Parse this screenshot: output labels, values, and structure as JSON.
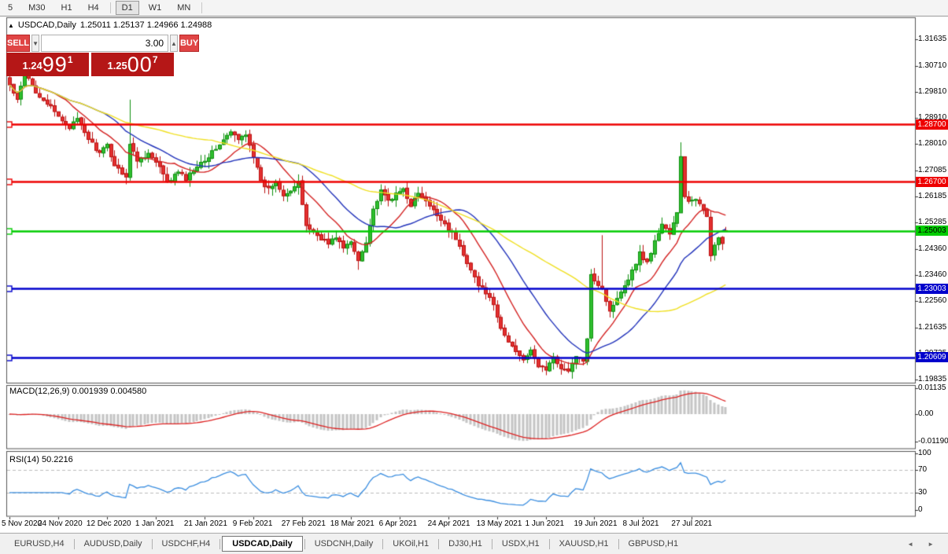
{
  "toolbar": {
    "timeframes": [
      "5",
      "M30",
      "H1",
      "H4",
      "D1",
      "W1",
      "MN"
    ],
    "active": "D1"
  },
  "title": {
    "symbol_text": "USDCAD,Daily",
    "ohlc_text": "1.25011 1.25137 1.24966 1.24988"
  },
  "trade_panel": {
    "sell_label": "SELL",
    "buy_label": "BUY",
    "volume": "3.00",
    "sell_price": {
      "small": "1.24",
      "big": "99",
      "sup": "1"
    },
    "buy_price": {
      "small": "1.25",
      "big": "00",
      "sup": "7"
    }
  },
  "chart_data": {
    "type": "candlestick",
    "symbol": "USDCAD",
    "period": "Daily",
    "num_candles": 192,
    "last_candle": {
      "open": 1.25011,
      "high": 1.25137,
      "low": 1.24966,
      "close": 1.24988
    },
    "close_keypoints": [
      [
        0,
        1.3005
      ],
      [
        2,
        1.295
      ],
      [
        4,
        1.3048
      ],
      [
        7,
        1.2983
      ],
      [
        10,
        1.2942
      ],
      [
        13,
        1.2895
      ],
      [
        16,
        1.286
      ],
      [
        18,
        1.2885
      ],
      [
        21,
        1.282
      ],
      [
        24,
        1.2768
      ],
      [
        26,
        1.2796
      ],
      [
        28,
        1.2728
      ],
      [
        31,
        1.269
      ],
      [
        32,
        1.28
      ],
      [
        34,
        1.2745
      ],
      [
        37,
        1.2768
      ],
      [
        40,
        1.272
      ],
      [
        42,
        1.2665
      ],
      [
        45,
        1.2705
      ],
      [
        47,
        1.268
      ],
      [
        50,
        1.2728
      ],
      [
        53,
        1.2758
      ],
      [
        56,
        1.28
      ],
      [
        59,
        1.2842
      ],
      [
        61,
        1.2815
      ],
      [
        63,
        1.2838
      ],
      [
        65,
        1.2762
      ],
      [
        67,
        1.2668
      ],
      [
        69,
        1.2645
      ],
      [
        71,
        1.2672
      ],
      [
        73,
        1.2628
      ],
      [
        75,
        1.264
      ],
      [
        77,
        1.2665
      ],
      [
        79,
        1.252
      ],
      [
        81,
        1.2495
      ],
      [
        83,
        1.2475
      ],
      [
        85,
        1.2455
      ],
      [
        87,
        1.248
      ],
      [
        89,
        1.244
      ],
      [
        91,
        1.246
      ],
      [
        93,
        1.2398
      ],
      [
        95,
        1.2465
      ],
      [
        97,
        1.2575
      ],
      [
        99,
        1.2635
      ],
      [
        101,
        1.2605
      ],
      [
        103,
        1.2625
      ],
      [
        105,
        1.2645
      ],
      [
        107,
        1.259
      ],
      [
        109,
        1.2628
      ],
      [
        111,
        1.26
      ],
      [
        113,
        1.2568
      ],
      [
        115,
        1.2542
      ],
      [
        117,
        1.2508
      ],
      [
        119,
        1.2472
      ],
      [
        121,
        1.2415
      ],
      [
        123,
        1.237
      ],
      [
        125,
        1.231
      ],
      [
        127,
        1.2288
      ],
      [
        129,
        1.2238
      ],
      [
        131,
        1.216
      ],
      [
        133,
        1.2115
      ],
      [
        135,
        1.2085
      ],
      [
        137,
        1.2058
      ],
      [
        139,
        1.208
      ],
      [
        141,
        1.2032
      ],
      [
        143,
        1.202
      ],
      [
        145,
        1.2058
      ],
      [
        147,
        1.2028
      ],
      [
        149,
        1.201
      ],
      [
        151,
        1.2068
      ],
      [
        153,
        1.2042
      ],
      [
        154,
        1.213
      ],
      [
        155,
        1.2355
      ],
      [
        156,
        1.233
      ],
      [
        158,
        1.23
      ],
      [
        160,
        1.2218
      ],
      [
        162,
        1.2272
      ],
      [
        164,
        1.2312
      ],
      [
        166,
        1.236
      ],
      [
        168,
        1.2422
      ],
      [
        170,
        1.239
      ],
      [
        172,
        1.2462
      ],
      [
        174,
        1.2525
      ],
      [
        176,
        1.249
      ],
      [
        178,
        1.256
      ],
      [
        179,
        1.2755
      ],
      [
        180,
        1.262
      ],
      [
        181,
        1.2605
      ],
      [
        183,
        1.2605
      ],
      [
        185,
        1.2572
      ],
      [
        186,
        1.2556
      ],
      [
        187,
        1.242
      ],
      [
        188,
        1.2445
      ],
      [
        189,
        1.2475
      ],
      [
        190,
        1.2455
      ],
      [
        191,
        1.24988
      ]
    ],
    "special_wicks": {
      "32": {
        "high": 1.2955
      },
      "93": {
        "low": 1.2365
      },
      "158": {
        "high": 1.2485
      },
      "179": {
        "high": 1.2807
      }
    },
    "hlines": [
      {
        "price": 1.287,
        "label": "1.28700",
        "color": "#ee0000",
        "text_color": "#ffffff"
      },
      {
        "price": 1.267,
        "label": "1.26700",
        "color": "#ee0000",
        "text_color": "#ffffff"
      },
      {
        "price": 1.25003,
        "label": "1.25003",
        "color": "#00cc00",
        "text_color": "#000000"
      },
      {
        "price": 1.23003,
        "label": "1.23003",
        "color": "#0000cc",
        "text_color": "#ffffff"
      },
      {
        "price": 1.20609,
        "label": "1.20609",
        "color": "#0000cc",
        "text_color": "#ffffff"
      }
    ],
    "price_ticks": [
      "1.31635",
      "1.30710",
      "1.29810",
      "1.28910",
      "1.28010",
      "1.27085",
      "1.26185",
      "1.25285",
      "1.24360",
      "1.23460",
      "1.22560",
      "1.21635",
      "1.20735",
      "1.19835"
    ],
    "moving_averages": [
      {
        "period": 13,
        "color": "#d42222"
      },
      {
        "period": 26,
        "color": "#2233bb"
      },
      {
        "period": 55,
        "color": "#f0e022"
      }
    ],
    "candle_colors": {
      "up_fill": "#2fbf2f",
      "up_edge": "#0e8f0e",
      "down_fill": "#e33030",
      "down_edge": "#bb1111"
    },
    "macd": {
      "label": "MACD(12,26,9) 0.001939 0.004580",
      "fast": 12,
      "slow": 26,
      "signal": 9,
      "ticks": [
        "0.01135",
        "0.00",
        "-0.01190"
      ],
      "bar_color": "#c4c4c4",
      "line_color": "#dd2222"
    },
    "rsi": {
      "label": "RSI(14) 50.2216",
      "period": 14,
      "ticks": [
        "100",
        "70",
        "30",
        "0"
      ],
      "levels": [
        70,
        30
      ],
      "line_color": "#3b8ee0"
    },
    "date_labels": [
      "5 Nov 2020",
      "24 Nov 2020",
      "12 Dec 2020",
      "1 Jan 2021",
      "21 Jan 2021",
      "9 Feb 2021",
      "27 Feb 2021",
      "18 Mar 2021",
      "6 Apr 2021",
      "24 Apr 2021",
      "13 May 2021",
      "1 Jun 2021",
      "19 Jun 2021",
      "8 Jul 2021",
      "27 Jul 2021"
    ],
    "label_every": 13
  },
  "tabs": {
    "items": [
      "EURUSD,H4",
      "AUDUSD,Daily",
      "USDCHF,H4",
      "USDCAD,Daily",
      "USDCNH,Daily",
      "UKOil,H1",
      "DJ30,H1",
      "USDX,H1",
      "XAUUSD,H1",
      "GBPUSD,H1"
    ],
    "active": "USDCAD,Daily"
  }
}
